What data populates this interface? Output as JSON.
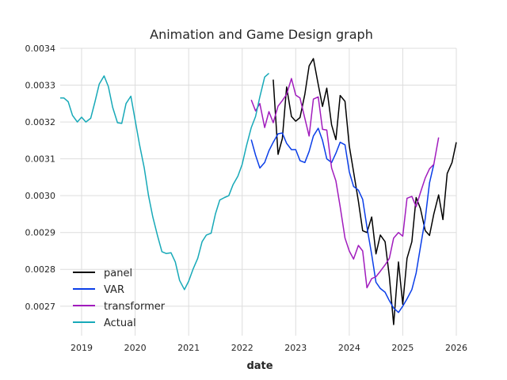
{
  "chart_data": {
    "type": "line",
    "title": "Animation and Game Design graph",
    "xlabel": "date",
    "ylabel": "",
    "xlim": [
      2018.6,
      2026.0
    ],
    "ylim": [
      0.00262,
      0.0034
    ],
    "x_ticks": [
      2019,
      2020,
      2021,
      2022,
      2023,
      2024,
      2025,
      2026
    ],
    "x_tick_labels": [
      "2019",
      "2020",
      "2021",
      "2022",
      "2023",
      "2024",
      "2025",
      "2026"
    ],
    "y_ticks": [
      0.0027,
      0.0028,
      0.0029,
      0.003,
      0.0031,
      0.0032,
      0.0033,
      0.0034
    ],
    "y_tick_labels": [
      "0.0027",
      "0.0028",
      "0.0029",
      "0.0030",
      "0.0031",
      "0.0032",
      "0.0033",
      "0.0034"
    ],
    "grid": true,
    "legend_position": "lower-left",
    "series": [
      {
        "name": "panel",
        "color": "#000000",
        "points": [
          [
            2022.58,
            0.003315
          ],
          [
            2022.67,
            0.003112
          ],
          [
            2022.75,
            0.003155
          ],
          [
            2022.83,
            0.003295
          ],
          [
            2022.92,
            0.003215
          ],
          [
            2023.0,
            0.003202
          ],
          [
            2023.08,
            0.003212
          ],
          [
            2023.17,
            0.003275
          ],
          [
            2023.25,
            0.003352
          ],
          [
            2023.33,
            0.003372
          ],
          [
            2023.42,
            0.003302
          ],
          [
            2023.5,
            0.003242
          ],
          [
            2023.58,
            0.003292
          ],
          [
            2023.67,
            0.003192
          ],
          [
            2023.75,
            0.003152
          ],
          [
            2023.83,
            0.003272
          ],
          [
            2023.92,
            0.003256
          ],
          [
            2024.0,
            0.003135
          ],
          [
            2024.08,
            0.003065
          ],
          [
            2024.17,
            0.002985
          ],
          [
            2024.25,
            0.002905
          ],
          [
            2024.33,
            0.0029
          ],
          [
            2024.42,
            0.002942
          ],
          [
            2024.5,
            0.002842
          ],
          [
            2024.58,
            0.002893
          ],
          [
            2024.67,
            0.002875
          ],
          [
            2024.75,
            0.00278
          ],
          [
            2024.83,
            0.00265
          ],
          [
            2024.92,
            0.00282
          ],
          [
            2025.0,
            0.002705
          ],
          [
            2025.08,
            0.00283
          ],
          [
            2025.17,
            0.002875
          ],
          [
            2025.25,
            0.002995
          ],
          [
            2025.33,
            0.002965
          ],
          [
            2025.42,
            0.002905
          ],
          [
            2025.5,
            0.002892
          ],
          [
            2025.58,
            0.00295
          ],
          [
            2025.67,
            0.003002
          ],
          [
            2025.75,
            0.002935
          ],
          [
            2025.83,
            0.00306
          ],
          [
            2025.92,
            0.00309
          ],
          [
            2026.0,
            0.003145
          ]
        ]
      },
      {
        "name": "VAR",
        "color": "#0a3ee8",
        "points": [
          [
            2022.17,
            0.003152
          ],
          [
            2022.25,
            0.00311
          ],
          [
            2022.33,
            0.003075
          ],
          [
            2022.42,
            0.00309
          ],
          [
            2022.5,
            0.003122
          ],
          [
            2022.58,
            0.003145
          ],
          [
            2022.67,
            0.003168
          ],
          [
            2022.75,
            0.00317
          ],
          [
            2022.83,
            0.003142
          ],
          [
            2022.92,
            0.003125
          ],
          [
            2023.0,
            0.003125
          ],
          [
            2023.08,
            0.003095
          ],
          [
            2023.17,
            0.00309
          ],
          [
            2023.25,
            0.00312
          ],
          [
            2023.33,
            0.003162
          ],
          [
            2023.42,
            0.003183
          ],
          [
            2023.5,
            0.00315
          ],
          [
            2023.58,
            0.0031
          ],
          [
            2023.67,
            0.00309
          ],
          [
            2023.75,
            0.003115
          ],
          [
            2023.83,
            0.003145
          ],
          [
            2023.92,
            0.003138
          ],
          [
            2024.0,
            0.003065
          ],
          [
            2024.08,
            0.003025
          ],
          [
            2024.17,
            0.003015
          ],
          [
            2024.25,
            0.00299
          ],
          [
            2024.33,
            0.002915
          ],
          [
            2024.42,
            0.00284
          ],
          [
            2024.5,
            0.002765
          ],
          [
            2024.58,
            0.002748
          ],
          [
            2024.67,
            0.002738
          ],
          [
            2024.75,
            0.002715
          ],
          [
            2024.83,
            0.002695
          ],
          [
            2024.92,
            0.002683
          ],
          [
            2025.0,
            0.0027
          ],
          [
            2025.08,
            0.00272
          ],
          [
            2025.17,
            0.002745
          ],
          [
            2025.25,
            0.00279
          ],
          [
            2025.33,
            0.00286
          ],
          [
            2025.42,
            0.002938
          ],
          [
            2025.5,
            0.003035
          ],
          [
            2025.58,
            0.003085
          ]
        ]
      },
      {
        "name": "transformer",
        "color": "#a11cbd",
        "points": [
          [
            2022.17,
            0.00326
          ],
          [
            2022.25,
            0.00323
          ],
          [
            2022.33,
            0.00325
          ],
          [
            2022.42,
            0.003185
          ],
          [
            2022.5,
            0.003228
          ],
          [
            2022.58,
            0.003198
          ],
          [
            2022.67,
            0.003243
          ],
          [
            2022.75,
            0.003258
          ],
          [
            2022.83,
            0.003275
          ],
          [
            2022.92,
            0.003318
          ],
          [
            2023.0,
            0.003273
          ],
          [
            2023.08,
            0.003265
          ],
          [
            2023.17,
            0.00321
          ],
          [
            2023.25,
            0.003162
          ],
          [
            2023.33,
            0.003262
          ],
          [
            2023.42,
            0.003268
          ],
          [
            2023.5,
            0.00318
          ],
          [
            2023.58,
            0.003178
          ],
          [
            2023.67,
            0.003075
          ],
          [
            2023.75,
            0.00304
          ],
          [
            2023.83,
            0.00297
          ],
          [
            2023.92,
            0.002885
          ],
          [
            2024.0,
            0.00285
          ],
          [
            2024.08,
            0.002828
          ],
          [
            2024.17,
            0.002865
          ],
          [
            2024.25,
            0.00285
          ],
          [
            2024.33,
            0.00275
          ],
          [
            2024.42,
            0.002775
          ],
          [
            2024.5,
            0.00278
          ],
          [
            2024.58,
            0.002795
          ],
          [
            2024.67,
            0.002812
          ],
          [
            2024.75,
            0.00283
          ],
          [
            2024.83,
            0.002885
          ],
          [
            2024.92,
            0.0029
          ],
          [
            2025.0,
            0.00289
          ],
          [
            2025.08,
            0.002993
          ],
          [
            2025.17,
            0.002998
          ],
          [
            2025.25,
            0.00297
          ],
          [
            2025.33,
            0.003008
          ],
          [
            2025.42,
            0.003048
          ],
          [
            2025.5,
            0.003073
          ],
          [
            2025.58,
            0.003085
          ],
          [
            2025.67,
            0.003158
          ]
        ]
      },
      {
        "name": "Actual",
        "color": "#17a9b8",
        "points": [
          [
            2018.6,
            0.003265
          ],
          [
            2018.67,
            0.003265
          ],
          [
            2018.75,
            0.003255
          ],
          [
            2018.83,
            0.003218
          ],
          [
            2018.92,
            0.0032
          ],
          [
            2019.0,
            0.003213
          ],
          [
            2019.08,
            0.0032
          ],
          [
            2019.17,
            0.00321
          ],
          [
            2019.25,
            0.003255
          ],
          [
            2019.33,
            0.003303
          ],
          [
            2019.42,
            0.003325
          ],
          [
            2019.5,
            0.003296
          ],
          [
            2019.58,
            0.00324
          ],
          [
            2019.67,
            0.003198
          ],
          [
            2019.75,
            0.003196
          ],
          [
            2019.83,
            0.00325
          ],
          [
            2019.92,
            0.00327
          ],
          [
            2020.0,
            0.003205
          ],
          [
            2020.08,
            0.00314
          ],
          [
            2020.17,
            0.003075
          ],
          [
            2020.25,
            0.003
          ],
          [
            2020.33,
            0.002942
          ],
          [
            2020.42,
            0.00289
          ],
          [
            2020.5,
            0.002848
          ],
          [
            2020.58,
            0.002843
          ],
          [
            2020.67,
            0.002845
          ],
          [
            2020.75,
            0.00282
          ],
          [
            2020.83,
            0.00277
          ],
          [
            2020.92,
            0.002745
          ],
          [
            2021.0,
            0.002768
          ],
          [
            2021.08,
            0.0028
          ],
          [
            2021.17,
            0.00283
          ],
          [
            2021.25,
            0.002875
          ],
          [
            2021.33,
            0.002893
          ],
          [
            2021.42,
            0.002898
          ],
          [
            2021.5,
            0.00295
          ],
          [
            2021.58,
            0.002988
          ],
          [
            2021.67,
            0.002995
          ],
          [
            2021.75,
            0.003
          ],
          [
            2021.83,
            0.00303
          ],
          [
            2021.92,
            0.003053
          ],
          [
            2022.0,
            0.003085
          ],
          [
            2022.08,
            0.003135
          ],
          [
            2022.17,
            0.003185
          ],
          [
            2022.25,
            0.003215
          ],
          [
            2022.33,
            0.003268
          ],
          [
            2022.42,
            0.003322
          ],
          [
            2022.5,
            0.003332
          ]
        ]
      }
    ]
  }
}
